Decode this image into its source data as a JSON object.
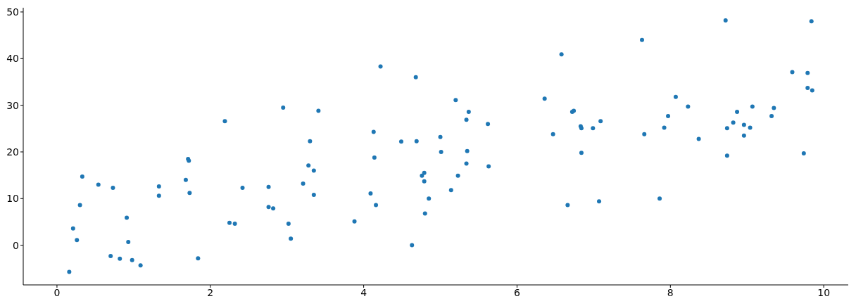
{
  "chart_data": {
    "type": "scatter",
    "xlim": [
      -0.44,
      10.32
    ],
    "ylim": [
      -8.5,
      50.9
    ],
    "xticks": [
      0,
      2,
      4,
      6,
      8,
      10
    ],
    "yticks": [
      0,
      10,
      20,
      30,
      40,
      50
    ],
    "marker": "circle",
    "series": [
      {
        "color": "#1f77b4",
        "x": [
          0.16,
          0.21,
          0.26,
          0.3,
          0.33,
          0.54,
          0.7,
          0.73,
          0.82,
          0.91,
          0.93,
          0.98,
          1.09,
          1.33,
          1.33,
          1.68,
          1.71,
          1.72,
          1.73,
          1.84,
          2.19,
          2.25,
          2.32,
          2.42,
          2.76,
          2.76,
          2.82,
          2.95,
          3.02,
          3.05,
          3.21,
          3.28,
          3.3,
          3.35,
          3.35,
          3.41,
          3.88,
          4.09,
          4.13,
          4.14,
          4.16,
          4.22,
          4.49,
          4.63,
          4.68,
          4.69,
          4.76,
          4.79,
          4.79,
          4.8,
          4.85,
          5.0,
          5.01,
          5.14,
          5.2,
          5.23,
          5.34,
          5.35,
          5.37,
          5.34,
          5.62,
          5.63,
          6.36,
          6.47,
          6.58,
          6.66,
          6.72,
          6.74,
          6.83,
          6.84,
          6.84,
          6.99,
          7.07,
          7.09,
          7.63,
          7.66,
          7.86,
          7.92,
          7.97,
          8.07,
          8.23,
          8.37,
          8.72,
          8.74,
          8.74,
          8.82,
          8.87,
          8.96,
          8.96,
          9.04,
          9.07,
          9.32,
          9.35,
          9.59,
          9.74,
          9.79,
          9.79,
          9.84,
          9.85
        ],
        "values": [
          -5.7,
          3.6,
          1.1,
          8.6,
          14.7,
          13.0,
          -2.3,
          12.3,
          -2.9,
          5.9,
          0.7,
          -3.2,
          -4.3,
          12.6,
          10.6,
          14.0,
          18.5,
          18.1,
          11.2,
          -2.8,
          26.6,
          4.8,
          4.6,
          12.3,
          12.5,
          8.2,
          7.9,
          29.5,
          4.6,
          1.4,
          13.2,
          17.1,
          22.3,
          16.0,
          10.8,
          28.8,
          5.1,
          11.1,
          24.3,
          18.8,
          8.6,
          38.3,
          22.2,
          0.0,
          36.0,
          22.3,
          14.9,
          15.5,
          13.7,
          6.8,
          10.0,
          23.2,
          20.0,
          11.8,
          31.1,
          14.9,
          26.9,
          20.2,
          28.6,
          17.5,
          26.0,
          16.9,
          31.4,
          23.8,
          40.9,
          8.6,
          28.6,
          28.8,
          25.5,
          25.1,
          19.8,
          25.1,
          9.4,
          26.6,
          44.0,
          23.8,
          10.0,
          25.2,
          27.7,
          31.8,
          29.7,
          22.8,
          48.2,
          25.1,
          19.2,
          26.3,
          28.6,
          25.8,
          23.5,
          25.2,
          29.7,
          27.7,
          29.4,
          37.1,
          19.7,
          36.9,
          33.7,
          48.0,
          33.2
        ]
      }
    ]
  }
}
